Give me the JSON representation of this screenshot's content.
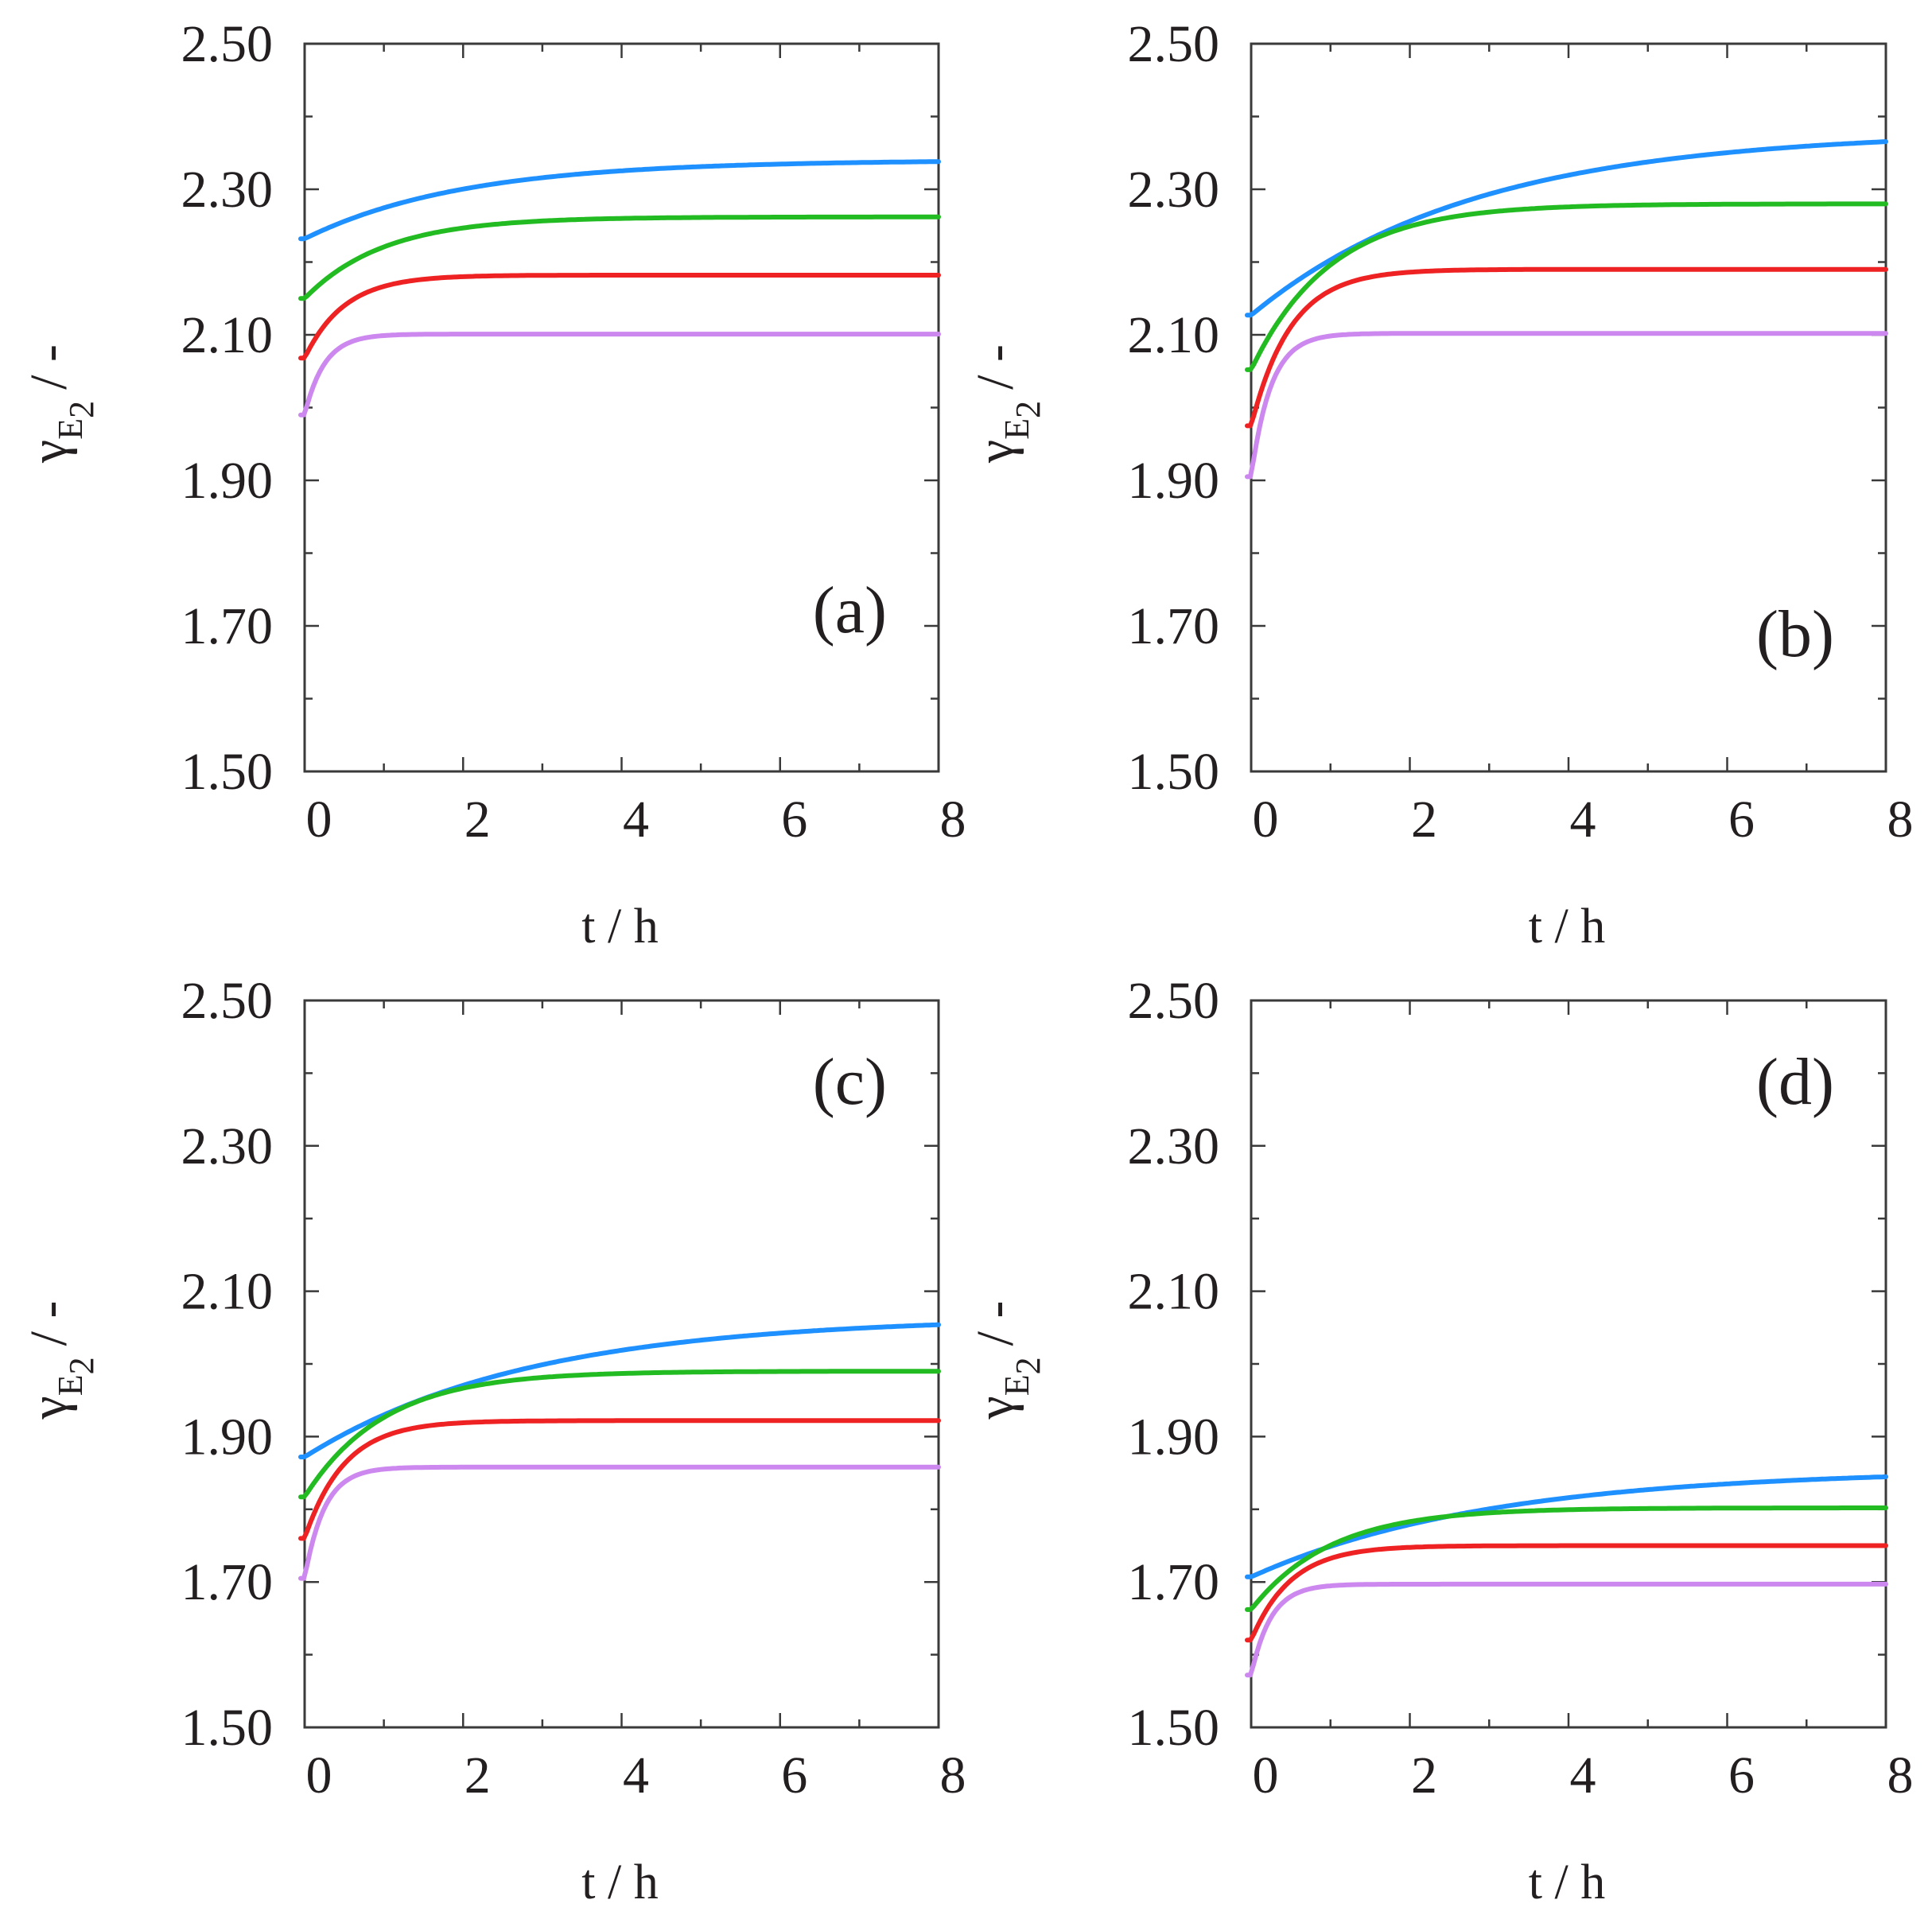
{
  "chart_data": [
    {
      "type": "line",
      "panel_label": "(a)",
      "xlabel": "t / h",
      "ylabel_symbol": "γ",
      "ylabel_subscript": "E",
      "ylabel_subsubscript": "2",
      "ylabel_unit": "/ -",
      "xlim": [
        0,
        8
      ],
      "ylim": [
        1.5,
        2.5
      ],
      "xticks": [
        "0",
        "2",
        "4",
        "6",
        "8"
      ],
      "yticks": [
        "1.50",
        "1.70",
        "1.90",
        "2.10",
        "2.30",
        "2.50"
      ],
      "label_position": "middle-right",
      "series": [
        {
          "name": "blue",
          "color": "#1e90ff",
          "start": 2.232,
          "end": 2.34,
          "tau": 2.0
        },
        {
          "name": "green",
          "color": "#22bb22",
          "start": 2.15,
          "end": 2.262,
          "tau": 1.0
        },
        {
          "name": "red",
          "color": "#ee2222",
          "start": 2.068,
          "end": 2.182,
          "tau": 0.5
        },
        {
          "name": "violet",
          "color": "#cc88ee",
          "start": 1.99,
          "end": 2.101,
          "tau": 0.25
        }
      ]
    },
    {
      "type": "line",
      "panel_label": "(b)",
      "xlabel": "t / h",
      "ylabel_symbol": "γ",
      "ylabel_subscript": "E",
      "ylabel_subsubscript": "2",
      "ylabel_unit": "/ -",
      "xlim": [
        0,
        8
      ],
      "ylim": [
        1.5,
        2.5
      ],
      "xticks": [
        "0",
        "2",
        "4",
        "6",
        "8"
      ],
      "yticks": [
        "1.50",
        "1.70",
        "1.90",
        "2.10",
        "2.30",
        "2.50"
      ],
      "label_position": "lower-right",
      "series": [
        {
          "name": "blue",
          "color": "#1e90ff",
          "start": 2.127,
          "end": 2.38,
          "tau": 2.8
        },
        {
          "name": "green",
          "color": "#22bb22",
          "start": 2.052,
          "end": 2.28,
          "tau": 1.0
        },
        {
          "name": "red",
          "color": "#ee2222",
          "start": 1.975,
          "end": 2.19,
          "tau": 0.5
        },
        {
          "name": "violet",
          "color": "#cc88ee",
          "start": 1.905,
          "end": 2.102,
          "tau": 0.25
        }
      ]
    },
    {
      "type": "line",
      "panel_label": "(c)",
      "xlabel": "t / h",
      "ylabel_symbol": "γ",
      "ylabel_subscript": "E",
      "ylabel_subsubscript": "2",
      "ylabel_unit": "/ -",
      "xlim": [
        0,
        8
      ],
      "ylim": [
        1.5,
        2.5
      ],
      "xticks": [
        "0",
        "2",
        "4",
        "6",
        "8"
      ],
      "yticks": [
        "1.50",
        "1.70",
        "1.90",
        "2.10",
        "2.30",
        "2.50"
      ],
      "label_position": "top-right",
      "series": [
        {
          "name": "blue",
          "color": "#1e90ff",
          "start": 1.872,
          "end": 2.065,
          "tau": 2.8
        },
        {
          "name": "green",
          "color": "#22bb22",
          "start": 1.817,
          "end": 1.99,
          "tau": 1.0
        },
        {
          "name": "red",
          "color": "#ee2222",
          "start": 1.76,
          "end": 1.922,
          "tau": 0.5
        },
        {
          "name": "violet",
          "color": "#cc88ee",
          "start": 1.705,
          "end": 1.858,
          "tau": 0.25
        }
      ]
    },
    {
      "type": "line",
      "panel_label": "(d)",
      "xlabel": "t / h",
      "ylabel_symbol": "γ",
      "ylabel_subscript": "E",
      "ylabel_subsubscript": "2",
      "ylabel_unit": "/ -",
      "xlim": [
        0,
        8
      ],
      "ylim": [
        1.5,
        2.5
      ],
      "xticks": [
        "0",
        "2",
        "4",
        "6",
        "8"
      ],
      "yticks": [
        "1.50",
        "1.70",
        "1.90",
        "2.10",
        "2.30",
        "2.50"
      ],
      "label_position": "top-right",
      "series": [
        {
          "name": "blue",
          "color": "#1e90ff",
          "start": 1.707,
          "end": 1.855,
          "tau": 3.0
        },
        {
          "name": "green",
          "color": "#22bb22",
          "start": 1.662,
          "end": 1.802,
          "tau": 1.0
        },
        {
          "name": "red",
          "color": "#ee2222",
          "start": 1.62,
          "end": 1.75,
          "tau": 0.5
        },
        {
          "name": "violet",
          "color": "#cc88ee",
          "start": 1.572,
          "end": 1.697,
          "tau": 0.25
        }
      ]
    }
  ]
}
